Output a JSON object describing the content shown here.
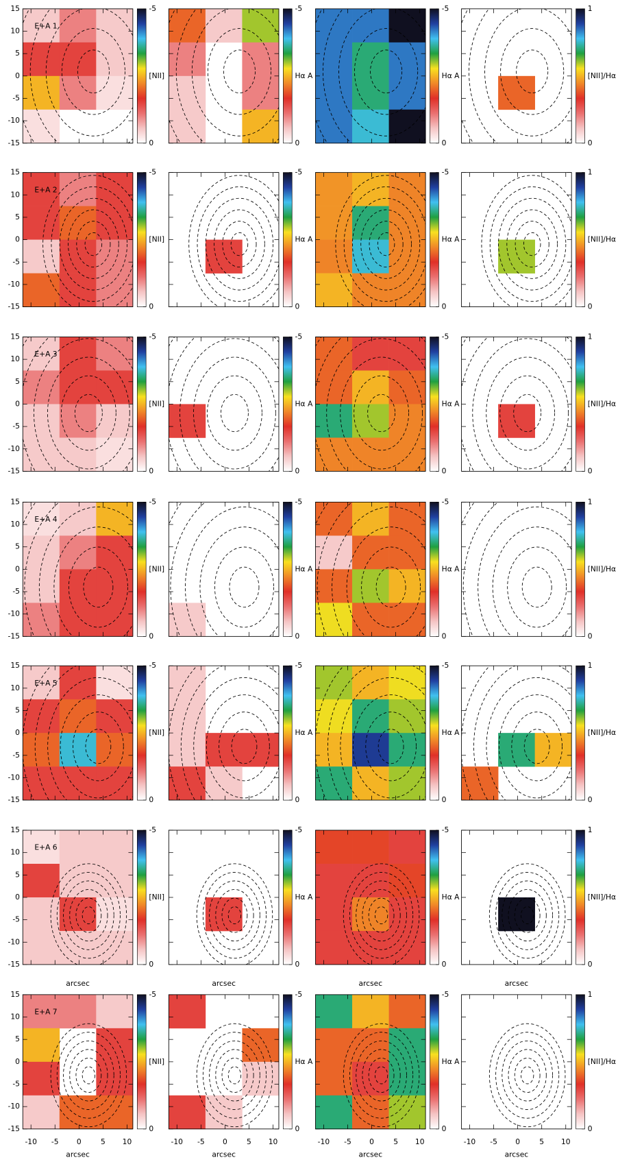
{
  "chart_data": {
    "type": "heatmap_grid",
    "xlim": [
      -11.7,
      11.2
    ],
    "ylim": [
      -15,
      15
    ],
    "xticks": [
      -10,
      -5,
      0,
      5,
      10
    ],
    "yticks": [
      -15,
      -10,
      -5,
      0,
      5,
      10,
      15
    ],
    "xlabel": "arcsec",
    "colormap": [
      "#ffffff",
      "#f5c4c4",
      "#ea7070",
      "#e03028",
      "#f08828",
      "#f8e020",
      "#20a040",
      "#40c0f0",
      "#2040a0",
      "#101020"
    ],
    "panels": [
      {
        "label": "E+A 1",
        "colorbar_label": "[NII]",
        "clim": [
          0,
          -5
        ],
        "cticks": [
          0,
          -5
        ],
        "values": [
          [
            -0.5,
            -1.0,
            -0.5
          ],
          [
            -1.5,
            -1.5,
            -0.5
          ],
          [
            -2.5,
            -1.0,
            -0.3
          ],
          [
            -0.3,
            null,
            null
          ]
        ]
      },
      {
        "colorbar_label": "Hα A",
        "clim": [
          0,
          -5
        ],
        "cticks": [
          0,
          -5
        ],
        "values": [
          [
            -2.0,
            -0.5,
            -3.0
          ],
          [
            -1.0,
            null,
            -1.0
          ],
          [
            -0.5,
            null,
            -1.0
          ],
          [
            -0.5,
            null,
            -2.5
          ]
        ]
      },
      {
        "colorbar_label": "Hα A",
        "clim": [
          0,
          -5
        ],
        "cticks": [
          0,
          -5
        ],
        "values": [
          [
            -4.2,
            -4.2,
            -5.0
          ],
          [
            -4.2,
            -3.5,
            -4.2
          ],
          [
            -4.2,
            -3.5,
            -4.2
          ],
          [
            -4.2,
            -3.8,
            -5.0
          ]
        ]
      },
      {
        "colorbar_label": "[NII]/Hα",
        "clim": [
          0,
          1
        ],
        "cticks": [
          0,
          1
        ],
        "values": [
          [
            null,
            null,
            null
          ],
          [
            null,
            null,
            null
          ],
          [
            null,
            0.4,
            null
          ],
          [
            null,
            null,
            null
          ]
        ]
      },
      {
        "label": "E+A 2",
        "colorbar_label": "[NII]",
        "clim": [
          0,
          -5
        ],
        "cticks": [
          0,
          -5
        ],
        "values": [
          [
            -1.5,
            -1.0,
            -1.5
          ],
          [
            -1.5,
            -2.0,
            -1.5
          ],
          [
            -0.5,
            -1.5,
            -1.0
          ],
          [
            -2.0,
            -1.5,
            -1.0
          ]
        ]
      },
      {
        "colorbar_label": "Hα A",
        "clim": [
          0,
          -5
        ],
        "cticks": [
          0,
          -5
        ],
        "values": [
          [
            null,
            null,
            null
          ],
          [
            null,
            null,
            null
          ],
          [
            null,
            -1.5,
            null
          ],
          [
            null,
            null,
            null
          ]
        ]
      },
      {
        "colorbar_label": "Hα A",
        "clim": [
          0,
          -5
        ],
        "cticks": [
          0,
          -5
        ],
        "values": [
          [
            -2.3,
            -2.5,
            -2.2
          ],
          [
            -2.3,
            -3.5,
            -2.2
          ],
          [
            -2.2,
            -3.8,
            -2.2
          ],
          [
            -2.5,
            -2.2,
            -2.2
          ]
        ]
      },
      {
        "colorbar_label": "[NII]/Hα",
        "clim": [
          0,
          1
        ],
        "cticks": [
          0,
          1
        ],
        "values": [
          [
            null,
            null,
            null
          ],
          [
            null,
            null,
            null
          ],
          [
            null,
            0.6,
            null
          ],
          [
            null,
            null,
            null
          ]
        ]
      },
      {
        "label": "E+A 3",
        "colorbar_label": "[NII]",
        "clim": [
          0,
          -5
        ],
        "cticks": [
          0,
          -5
        ],
        "values": [
          [
            -0.5,
            -1.5,
            -1.0
          ],
          [
            -1.0,
            -1.5,
            -1.5
          ],
          [
            -0.5,
            -1.0,
            -0.5
          ],
          [
            -0.5,
            -0.5,
            -0.3
          ]
        ]
      },
      {
        "colorbar_label": "Hα A",
        "clim": [
          0,
          -5
        ],
        "cticks": [
          0,
          -5
        ],
        "values": [
          [
            null,
            null,
            null
          ],
          [
            null,
            null,
            null
          ],
          [
            -1.5,
            null,
            null
          ],
          [
            null,
            null,
            null
          ]
        ]
      },
      {
        "colorbar_label": "Hα A",
        "clim": [
          0,
          -5
        ],
        "cticks": [
          0,
          -5
        ],
        "values": [
          [
            -2.0,
            -1.5,
            -1.5
          ],
          [
            -2.0,
            -2.5,
            -2.0
          ],
          [
            -3.5,
            -3.0,
            -2.2
          ],
          [
            -2.2,
            -2.2,
            -2.2
          ]
        ]
      },
      {
        "colorbar_label": "[NII]/Hα",
        "clim": [
          0,
          1
        ],
        "cticks": [
          0,
          1
        ],
        "values": [
          [
            null,
            null,
            null
          ],
          [
            null,
            null,
            null
          ],
          [
            null,
            0.3,
            null
          ],
          [
            null,
            null,
            null
          ]
        ]
      },
      {
        "label": "E+A 4",
        "colorbar_label": "[NII]",
        "clim": [
          0,
          -5
        ],
        "cticks": [
          0,
          -5
        ],
        "values": [
          [
            -0.3,
            -0.5,
            -2.5
          ],
          [
            -0.5,
            -1.0,
            -1.5
          ],
          [
            -0.5,
            -1.5,
            -1.5
          ],
          [
            -1.0,
            -1.5,
            -1.5
          ]
        ]
      },
      {
        "colorbar_label": "Hα A",
        "clim": [
          0,
          -5
        ],
        "cticks": [
          0,
          -5
        ],
        "values": [
          [
            null,
            null,
            null
          ],
          [
            null,
            null,
            null
          ],
          [
            null,
            null,
            null
          ],
          [
            -0.5,
            null,
            null
          ]
        ]
      },
      {
        "colorbar_label": "Hα A",
        "clim": [
          0,
          -5
        ],
        "cticks": [
          0,
          -5
        ],
        "values": [
          [
            -2.0,
            -2.5,
            -2.0
          ],
          [
            -0.5,
            -2.0,
            -2.0
          ],
          [
            -2.0,
            -3.0,
            -2.5
          ],
          [
            -2.8,
            -2.0,
            -2.0
          ]
        ]
      },
      {
        "colorbar_label": "[NII]/Hα",
        "clim": [
          0,
          1
        ],
        "cticks": [
          0,
          1
        ],
        "values": [
          [
            null,
            null,
            null
          ],
          [
            null,
            null,
            null
          ],
          [
            null,
            null,
            null
          ],
          [
            null,
            null,
            null
          ]
        ]
      },
      {
        "label": "E+A 5",
        "colorbar_label": "[NII]",
        "clim": [
          0,
          -5
        ],
        "cticks": [
          0,
          -5
        ],
        "values": [
          [
            -0.5,
            -1.5,
            -0.3
          ],
          [
            -1.5,
            -2.0,
            -1.5
          ],
          [
            -2.0,
            -3.8,
            -2.0
          ],
          [
            -1.5,
            -1.5,
            -1.5
          ]
        ]
      },
      {
        "colorbar_label": "Hα A",
        "clim": [
          0,
          -5
        ],
        "cticks": [
          0,
          -5
        ],
        "values": [
          [
            -0.5,
            null,
            null
          ],
          [
            -0.5,
            null,
            null
          ],
          [
            -0.5,
            -1.5,
            -1.5
          ],
          [
            -1.5,
            -0.5,
            null
          ]
        ]
      },
      {
        "colorbar_label": "Hα A",
        "clim": [
          0,
          -5
        ],
        "cticks": [
          0,
          -5
        ],
        "values": [
          [
            -3.0,
            -2.5,
            -2.8
          ],
          [
            -2.8,
            -3.5,
            -3.0
          ],
          [
            -2.5,
            -4.5,
            -3.5
          ],
          [
            -3.5,
            -2.5,
            -3.0
          ]
        ]
      },
      {
        "colorbar_label": "[NII]/Hα",
        "clim": [
          0,
          1
        ],
        "cticks": [
          0,
          1
        ],
        "values": [
          [
            null,
            null,
            null
          ],
          [
            null,
            null,
            null
          ],
          [
            null,
            0.7,
            0.5
          ],
          [
            0.4,
            null,
            null
          ]
        ]
      },
      {
        "label": "E+A 6",
        "colorbar_label": "[NII]",
        "clim": [
          0,
          -5
        ],
        "cticks": [
          0,
          -5
        ],
        "values": [
          [
            -0.3,
            -0.5,
            -0.5
          ],
          [
            -1.5,
            -0.5,
            -0.5
          ],
          [
            -0.5,
            -1.5,
            -0.3
          ],
          [
            -0.5,
            -0.5,
            -0.5
          ]
        ]
      },
      {
        "colorbar_label": "Hα A",
        "clim": [
          0,
          -5
        ],
        "cticks": [
          0,
          -5
        ],
        "values": [
          [
            null,
            null,
            null
          ],
          [
            null,
            null,
            null
          ],
          [
            null,
            -1.5,
            null
          ],
          [
            null,
            null,
            null
          ]
        ]
      },
      {
        "colorbar_label": "Hα A",
        "clim": [
          0,
          -5
        ],
        "cticks": [
          0,
          -5
        ],
        "values": [
          [
            -1.8,
            -1.8,
            -1.5
          ],
          [
            -1.5,
            -1.5,
            -1.8
          ],
          [
            -1.5,
            -2.2,
            -1.5
          ],
          [
            -1.5,
            -1.5,
            -1.5
          ]
        ]
      },
      {
        "colorbar_label": "[NII]/Hα",
        "clim": [
          0,
          1
        ],
        "cticks": [
          0,
          1
        ],
        "values": [
          [
            null,
            null,
            null
          ],
          [
            null,
            null,
            null
          ],
          [
            null,
            1.0,
            null
          ],
          [
            null,
            null,
            null
          ]
        ]
      },
      {
        "label": "E+A 7",
        "colorbar_label": "[NII]",
        "clim": [
          0,
          -5
        ],
        "cticks": [
          0,
          -5
        ],
        "values": [
          [
            -1.0,
            -1.0,
            -0.5
          ],
          [
            -2.5,
            null,
            -1.5
          ],
          [
            -1.5,
            null,
            -1.5
          ],
          [
            -0.5,
            -2.0,
            -2.0
          ]
        ]
      },
      {
        "colorbar_label": "Hα A",
        "clim": [
          0,
          -5
        ],
        "cticks": [
          0,
          -5
        ],
        "values": [
          [
            -1.5,
            null,
            null
          ],
          [
            null,
            null,
            -2.0
          ],
          [
            null,
            null,
            -0.5
          ],
          [
            -1.5,
            -0.5,
            null
          ]
        ]
      },
      {
        "colorbar_label": "Hα A",
        "clim": [
          0,
          -5
        ],
        "cticks": [
          0,
          -5
        ],
        "values": [
          [
            -3.5,
            -2.5,
            -2.0
          ],
          [
            -2.0,
            -2.0,
            -3.5
          ],
          [
            -2.0,
            -1.5,
            -3.5
          ],
          [
            -3.5,
            -2.0,
            -3.0
          ]
        ]
      },
      {
        "colorbar_label": "[NII]/Hα",
        "clim": [
          0,
          1
        ],
        "cticks": [
          0,
          1
        ],
        "values": [
          [
            null,
            null,
            null
          ],
          [
            null,
            null,
            null
          ],
          [
            null,
            null,
            null
          ],
          [
            null,
            null,
            null
          ]
        ]
      }
    ]
  }
}
